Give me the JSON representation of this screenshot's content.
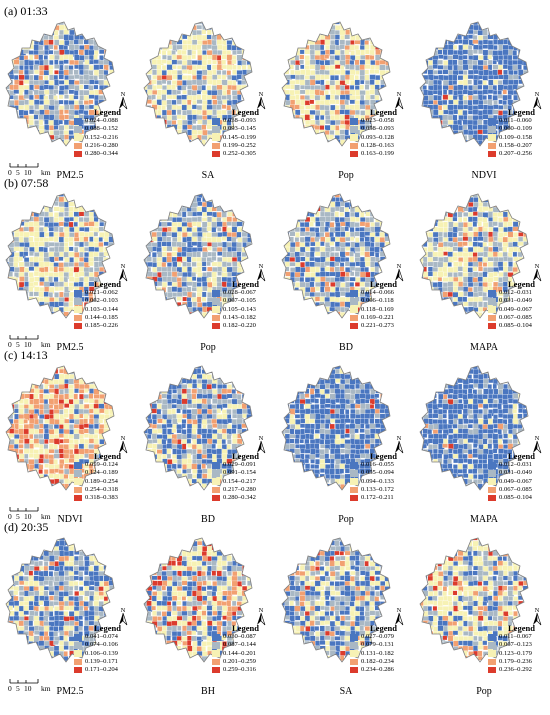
{
  "rows": [
    {
      "label": "(a) 01:33",
      "panels": [
        {
          "var": "PM2.5",
          "theme": "mixed",
          "legend": [
            "0.024–0.088",
            "0.088–0.152",
            "0.152–0.216",
            "0.216–0.280",
            "0.280–0.344"
          ],
          "scale": true
        },
        {
          "var": "SA",
          "theme": "light",
          "legend": [
            "0.038–0.093",
            "0.093–0.145",
            "0.145–0.199",
            "0.199–0.252",
            "0.252–0.305"
          ],
          "scale": false
        },
        {
          "var": "Pop",
          "theme": "light",
          "legend": [
            "0.023–0.058",
            "0.058–0.093",
            "0.093–0.128",
            "0.128–0.163",
            "0.163–0.199"
          ],
          "scale": false
        },
        {
          "var": "NDVI",
          "theme": "blue",
          "legend": [
            "0.011–0.060",
            "0.060–0.109",
            "0.109–0.158",
            "0.158–0.207",
            "0.207–0.256"
          ],
          "scale": false
        }
      ]
    },
    {
      "label": "(b) 07:58",
      "panels": [
        {
          "var": "PM2.5",
          "theme": "light",
          "legend": [
            "0.021–0.062",
            "0.062–0.103",
            "0.103–0.144",
            "0.144–0.185",
            "0.185–0.226"
          ],
          "scale": true
        },
        {
          "var": "Pop",
          "theme": "mixed",
          "legend": [
            "0.028–0.067",
            "0.067–0.105",
            "0.105–0.143",
            "0.143–0.182",
            "0.182–0.220"
          ],
          "scale": false
        },
        {
          "var": "BD",
          "theme": "mixed",
          "legend": [
            "0.014–0.066",
            "0.066–0.118",
            "0.118–0.169",
            "0.169–0.221",
            "0.221–0.273"
          ],
          "scale": false
        },
        {
          "var": "MAPA",
          "theme": "light",
          "legend": [
            "0.012–0.031",
            "0.031–0.049",
            "0.049–0.067",
            "0.067–0.085",
            "0.085–0.104"
          ],
          "scale": false
        }
      ]
    },
    {
      "label": "(c) 14:13",
      "panels": [
        {
          "var": "NDVI",
          "theme": "orange",
          "legend": [
            "0.059–0.124",
            "0.124–0.189",
            "0.189–0.254",
            "0.254–0.318",
            "0.318–0.383"
          ],
          "scale": true
        },
        {
          "var": "BD",
          "theme": "mixed",
          "legend": [
            "0.029–0.091",
            "0.091–0.154",
            "0.154–0.217",
            "0.217–0.280",
            "0.280–0.342"
          ],
          "scale": false
        },
        {
          "var": "Pop",
          "theme": "blue",
          "legend": [
            "0.016–0.055",
            "0.055–0.094",
            "0.094–0.133",
            "0.133–0.172",
            "0.172–0.211"
          ],
          "scale": false
        },
        {
          "var": "MAPA",
          "theme": "blue",
          "legend": [
            "0.012–0.031",
            "0.031–0.049",
            "0.049–0.067",
            "0.067–0.085",
            "0.085–0.104"
          ],
          "scale": false
        }
      ]
    },
    {
      "label": "(d) 20:35",
      "panels": [
        {
          "var": "PM2.5",
          "theme": "mixed",
          "legend": [
            "0.041–0.074",
            "0.074–0.106",
            "0.106–0.139",
            "0.139–0.171",
            "0.171–0.204"
          ],
          "scale": true
        },
        {
          "var": "BH",
          "theme": "hot",
          "legend": [
            "0.030–0.087",
            "0.087–0.144",
            "0.144–0.201",
            "0.201–0.259",
            "0.259–0.316"
          ],
          "scale": false
        },
        {
          "var": "SA",
          "theme": "mixed",
          "legend": [
            "0.027–0.079",
            "0.079–0.131",
            "0.131–0.182",
            "0.182–0.234",
            "0.234–0.286"
          ],
          "scale": false
        },
        {
          "var": "Pop",
          "theme": "light",
          "legend": [
            "0.011–0.067",
            "0.067–0.123",
            "0.123–0.179",
            "0.179–0.236",
            "0.236–0.292"
          ],
          "scale": false
        }
      ]
    }
  ],
  "legend_title": "Legend",
  "north_label": "N",
  "scale_ticks": [
    "0",
    "5",
    "10"
  ],
  "scale_unit": "km",
  "legend_colors": [
    "#4a76c0",
    "#a9b8c4",
    "#f7f2b4",
    "#f2a071",
    "#dc3b2c"
  ],
  "map_outline": "#7f7f7f"
}
